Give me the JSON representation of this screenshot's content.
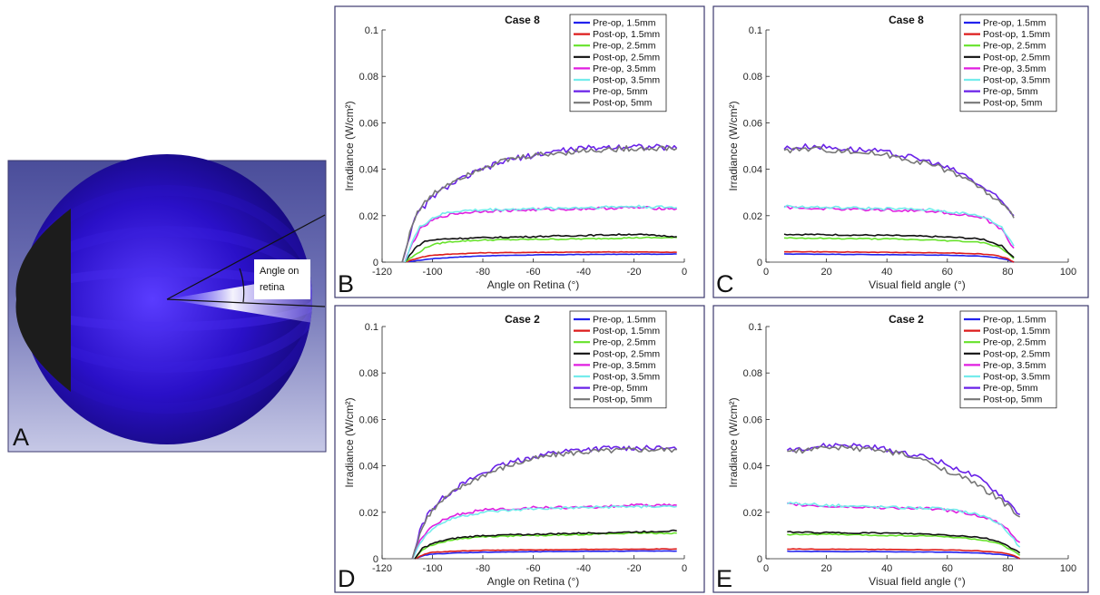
{
  "illustration": {
    "letter": "A",
    "angle_label_line1": "Angle on",
    "angle_label_line2": "retina",
    "background_color": "#5c5fa8",
    "eye_color": "#2a10c8",
    "lens_color": "#1c1c1c"
  },
  "legend_entries": [
    {
      "name": "Pre-op, 1.5mm",
      "color": "#2222ee"
    },
    {
      "name": "Post-op, 1.5mm",
      "color": "#dd1c1c"
    },
    {
      "name": "Pre-op, 2.5mm",
      "color": "#66e22a"
    },
    {
      "name": "Post-op, 2.5mm",
      "color": "#111111"
    },
    {
      "name": "Pre-op, 3.5mm",
      "color": "#e01ee0"
    },
    {
      "name": "Post-op, 3.5mm",
      "color": "#74ecec"
    },
    {
      "name": "Pre-op, 5mm",
      "color": "#6a22e8"
    },
    {
      "name": "Post-op, 5mm",
      "color": "#777777"
    }
  ],
  "chart_data": [
    {
      "letter": "B",
      "type": "line",
      "title": "Case 8",
      "xlabel": "Angle on Retina (°)",
      "ylabel": "Irradiance (W/cm²)",
      "xlim": [
        -120,
        0
      ],
      "ylim": [
        0,
        0.1
      ],
      "xticks": [
        -120,
        -100,
        -80,
        -60,
        -40,
        -20,
        0
      ],
      "yticks": [
        0,
        0.02,
        0.04,
        0.06,
        0.08,
        0.1
      ],
      "legend_position": "top-right",
      "x_range": [
        -112,
        -3
      ],
      "series": [
        {
          "name": "Pre-op, 1.5mm",
          "x": [
            -111,
            -105,
            -100,
            -90,
            -80,
            -60,
            -40,
            -20,
            -3
          ],
          "y": [
            0,
            0.0008,
            0.0015,
            0.0022,
            0.0027,
            0.0031,
            0.0033,
            0.0034,
            0.0035
          ]
        },
        {
          "name": "Post-op, 1.5mm",
          "x": [
            -111,
            -105,
            -100,
            -90,
            -80,
            -60,
            -40,
            -20,
            -3
          ],
          "y": [
            0,
            0.002,
            0.003,
            0.0036,
            0.004,
            0.0042,
            0.0043,
            0.0044,
            0.0042
          ]
        },
        {
          "name": "Pre-op, 2.5mm",
          "x": [
            -111,
            -107,
            -103,
            -100,
            -95,
            -90,
            -80,
            -60,
            -40,
            -20,
            -3
          ],
          "y": [
            0,
            0.003,
            0.006,
            0.0075,
            0.0085,
            0.009,
            0.0095,
            0.0098,
            0.01,
            0.0105,
            0.0105
          ]
        },
        {
          "name": "Post-op, 2.5mm",
          "x": [
            -111,
            -107,
            -103,
            -100,
            -95,
            -90,
            -80,
            -60,
            -40,
            -20,
            -3
          ],
          "y": [
            0,
            0.006,
            0.009,
            0.0095,
            0.01,
            0.0102,
            0.0105,
            0.011,
            0.0115,
            0.012,
            0.011
          ]
        },
        {
          "name": "Pre-op, 3.5mm",
          "x": [
            -111,
            -108,
            -105,
            -100,
            -95,
            -90,
            -80,
            -60,
            -40,
            -20,
            -3
          ],
          "y": [
            0,
            0.008,
            0.014,
            0.018,
            0.02,
            0.021,
            0.022,
            0.0225,
            0.023,
            0.0235,
            0.023
          ]
        },
        {
          "name": "Post-op, 3.5mm",
          "x": [
            -111,
            -108,
            -105,
            -100,
            -95,
            -90,
            -80,
            -60,
            -40,
            -20,
            -3
          ],
          "y": [
            0,
            0.009,
            0.015,
            0.019,
            0.021,
            0.022,
            0.0225,
            0.023,
            0.0235,
            0.024,
            0.0235
          ]
        },
        {
          "name": "Pre-op, 5mm",
          "x": [
            -112,
            -110,
            -108,
            -105,
            -100,
            -95,
            -90,
            -80,
            -70,
            -60,
            -50,
            -40,
            -20,
            -3
          ],
          "y": [
            0,
            0.008,
            0.016,
            0.022,
            0.028,
            0.032,
            0.035,
            0.04,
            0.044,
            0.046,
            0.048,
            0.049,
            0.05,
            0.049
          ]
        },
        {
          "name": "Post-op, 5mm",
          "x": [
            -112,
            -110,
            -108,
            -105,
            -100,
            -95,
            -90,
            -80,
            -70,
            -60,
            -50,
            -40,
            -20,
            -3
          ],
          "y": [
            0,
            0.008,
            0.017,
            0.023,
            0.029,
            0.033,
            0.036,
            0.041,
            0.044,
            0.046,
            0.047,
            0.048,
            0.049,
            0.049
          ]
        }
      ]
    },
    {
      "letter": "C",
      "type": "line",
      "title": "Case 8",
      "xlabel": "Visual field angle (°)",
      "ylabel": "Irradiance (W/cm²)",
      "xlim": [
        0,
        100
      ],
      "ylim": [
        0,
        0.1
      ],
      "xticks": [
        0,
        20,
        40,
        60,
        80,
        100
      ],
      "yticks": [
        0,
        0.02,
        0.04,
        0.06,
        0.08,
        0.1
      ],
      "legend_position": "top-right",
      "x_range": [
        6,
        82
      ],
      "series": [
        {
          "name": "Pre-op, 1.5mm",
          "x": [
            6,
            20,
            40,
            60,
            70,
            76,
            80,
            82
          ],
          "y": [
            0.0035,
            0.0034,
            0.0032,
            0.003,
            0.0026,
            0.002,
            0.001,
            0
          ]
        },
        {
          "name": "Post-op, 1.5mm",
          "x": [
            6,
            20,
            40,
            60,
            70,
            76,
            80,
            82
          ],
          "y": [
            0.0045,
            0.0044,
            0.0042,
            0.004,
            0.0036,
            0.003,
            0.0015,
            0
          ]
        },
        {
          "name": "Pre-op, 2.5mm",
          "x": [
            6,
            20,
            40,
            55,
            65,
            72,
            78,
            82
          ],
          "y": [
            0.0105,
            0.0102,
            0.01,
            0.0095,
            0.009,
            0.0085,
            0.006,
            0.0015
          ]
        },
        {
          "name": "Post-op, 2.5mm",
          "x": [
            6,
            20,
            40,
            55,
            65,
            72,
            78,
            82
          ],
          "y": [
            0.012,
            0.0118,
            0.0115,
            0.011,
            0.0105,
            0.0098,
            0.007,
            0.002
          ]
        },
        {
          "name": "Pre-op, 3.5mm",
          "x": [
            6,
            20,
            40,
            55,
            65,
            72,
            78,
            82
          ],
          "y": [
            0.0235,
            0.023,
            0.0225,
            0.022,
            0.0205,
            0.019,
            0.014,
            0.006
          ]
        },
        {
          "name": "Post-op, 3.5mm",
          "x": [
            6,
            20,
            40,
            55,
            65,
            72,
            78,
            82
          ],
          "y": [
            0.024,
            0.0235,
            0.023,
            0.0225,
            0.021,
            0.0195,
            0.015,
            0.007
          ]
        },
        {
          "name": "Pre-op, 5mm",
          "x": [
            6,
            15,
            25,
            35,
            45,
            55,
            65,
            72,
            78,
            82
          ],
          "y": [
            0.049,
            0.05,
            0.049,
            0.048,
            0.046,
            0.043,
            0.038,
            0.032,
            0.026,
            0.02
          ]
        },
        {
          "name": "Post-op, 5mm",
          "x": [
            6,
            15,
            25,
            35,
            45,
            55,
            65,
            72,
            78,
            82
          ],
          "y": [
            0.048,
            0.049,
            0.048,
            0.047,
            0.045,
            0.042,
            0.037,
            0.031,
            0.025,
            0.019
          ]
        }
      ]
    },
    {
      "letter": "D",
      "type": "line",
      "title": "Case 2",
      "xlabel": "Angle on Retina (°)",
      "ylabel": "Irradiance (W/cm²)",
      "xlim": [
        -120,
        0
      ],
      "ylim": [
        0,
        0.1
      ],
      "xticks": [
        -120,
        -100,
        -80,
        -60,
        -40,
        -20,
        0
      ],
      "yticks": [
        0,
        0.02,
        0.04,
        0.06,
        0.08,
        0.1
      ],
      "legend_position": "top-right",
      "x_range": [
        -108,
        -3
      ],
      "series": [
        {
          "name": "Pre-op, 1.5mm",
          "x": [
            -107,
            -103,
            -100,
            -90,
            -80,
            -60,
            -40,
            -20,
            -3
          ],
          "y": [
            0,
            0.0015,
            0.002,
            0.0025,
            0.0028,
            0.003,
            0.0032,
            0.0033,
            0.0033
          ]
        },
        {
          "name": "Post-op, 1.5mm",
          "x": [
            -107,
            -103,
            -100,
            -90,
            -80,
            -60,
            -40,
            -20,
            -3
          ],
          "y": [
            0,
            0.002,
            0.0028,
            0.0033,
            0.0036,
            0.0038,
            0.004,
            0.0041,
            0.0042
          ]
        },
        {
          "name": "Pre-op, 2.5mm",
          "x": [
            -107,
            -104,
            -100,
            -95,
            -90,
            -80,
            -60,
            -40,
            -20,
            -3
          ],
          "y": [
            0,
            0.004,
            0.006,
            0.0075,
            0.0085,
            0.0095,
            0.01,
            0.0105,
            0.011,
            0.011
          ]
        },
        {
          "name": "Post-op, 2.5mm",
          "x": [
            -107,
            -104,
            -100,
            -95,
            -90,
            -80,
            -60,
            -40,
            -20,
            -3
          ],
          "y": [
            0,
            0.0045,
            0.0065,
            0.008,
            0.009,
            0.01,
            0.0105,
            0.011,
            0.0115,
            0.012
          ]
        },
        {
          "name": "Pre-op, 3.5mm",
          "x": [
            -108,
            -105,
            -100,
            -95,
            -90,
            -80,
            -60,
            -40,
            -20,
            -3
          ],
          "y": [
            0,
            0.008,
            0.014,
            0.017,
            0.019,
            0.021,
            0.022,
            0.022,
            0.023,
            0.023
          ]
        },
        {
          "name": "Post-op, 3.5mm",
          "x": [
            -108,
            -105,
            -100,
            -95,
            -90,
            -80,
            -60,
            -40,
            -20,
            -3
          ],
          "y": [
            0,
            0.007,
            0.013,
            0.016,
            0.018,
            0.02,
            0.0215,
            0.022,
            0.0225,
            0.0225
          ]
        },
        {
          "name": "Pre-op, 5mm",
          "x": [
            -108,
            -105,
            -102,
            -100,
            -95,
            -90,
            -80,
            -70,
            -60,
            -50,
            -40,
            -20,
            -3
          ],
          "y": [
            0,
            0.012,
            0.019,
            0.022,
            0.027,
            0.031,
            0.037,
            0.041,
            0.044,
            0.046,
            0.047,
            0.048,
            0.047
          ]
        },
        {
          "name": "Post-op, 5mm",
          "x": [
            -108,
            -105,
            -102,
            -100,
            -95,
            -90,
            -80,
            -70,
            -60,
            -50,
            -40,
            -20,
            -3
          ],
          "y": [
            0,
            0.011,
            0.018,
            0.021,
            0.026,
            0.03,
            0.036,
            0.04,
            0.043,
            0.045,
            0.046,
            0.047,
            0.047
          ]
        }
      ]
    },
    {
      "letter": "E",
      "type": "line",
      "title": "Case 2",
      "xlabel": "Visual field angle (°)",
      "ylabel": "Irradiance (W/cm²)",
      "xlim": [
        0,
        100
      ],
      "ylim": [
        0,
        0.1
      ],
      "xticks": [
        0,
        20,
        40,
        60,
        80,
        100
      ],
      "yticks": [
        0,
        0.02,
        0.04,
        0.06,
        0.08,
        0.1
      ],
      "legend_position": "top-right",
      "x_range": [
        7,
        84
      ],
      "series": [
        {
          "name": "Pre-op, 1.5mm",
          "x": [
            7,
            20,
            40,
            60,
            70,
            78,
            82,
            84
          ],
          "y": [
            0.0032,
            0.0031,
            0.003,
            0.0028,
            0.0025,
            0.0018,
            0.001,
            0
          ]
        },
        {
          "name": "Post-op, 1.5mm",
          "x": [
            7,
            20,
            40,
            60,
            70,
            78,
            82,
            84
          ],
          "y": [
            0.0042,
            0.0041,
            0.004,
            0.0038,
            0.0034,
            0.0026,
            0.0014,
            0
          ]
        },
        {
          "name": "Pre-op, 2.5mm",
          "x": [
            7,
            20,
            40,
            55,
            65,
            72,
            78,
            84
          ],
          "y": [
            0.0105,
            0.0105,
            0.01,
            0.0098,
            0.009,
            0.008,
            0.006,
            0.0015
          ]
        },
        {
          "name": "Post-op, 2.5mm",
          "x": [
            7,
            20,
            40,
            55,
            65,
            72,
            78,
            84
          ],
          "y": [
            0.0115,
            0.0112,
            0.011,
            0.0105,
            0.0098,
            0.009,
            0.007,
            0.0025
          ]
        },
        {
          "name": "Pre-op, 3.5mm",
          "x": [
            7,
            20,
            40,
            55,
            65,
            72,
            78,
            84
          ],
          "y": [
            0.0235,
            0.0225,
            0.022,
            0.0215,
            0.02,
            0.018,
            0.015,
            0.007
          ]
        },
        {
          "name": "Post-op, 3.5mm",
          "x": [
            7,
            20,
            40,
            55,
            65,
            72,
            78,
            84
          ],
          "y": [
            0.024,
            0.023,
            0.0222,
            0.0218,
            0.0205,
            0.0185,
            0.0145,
            0.005
          ]
        },
        {
          "name": "Pre-op, 5mm",
          "x": [
            7,
            15,
            25,
            35,
            45,
            55,
            65,
            72,
            78,
            84
          ],
          "y": [
            0.047,
            0.048,
            0.049,
            0.048,
            0.046,
            0.043,
            0.038,
            0.033,
            0.027,
            0.019
          ]
        },
        {
          "name": "Post-op, 5mm",
          "x": [
            7,
            15,
            25,
            35,
            45,
            55,
            65,
            72,
            78,
            84
          ],
          "y": [
            0.046,
            0.047,
            0.048,
            0.047,
            0.045,
            0.041,
            0.035,
            0.03,
            0.025,
            0.018
          ]
        }
      ]
    }
  ]
}
